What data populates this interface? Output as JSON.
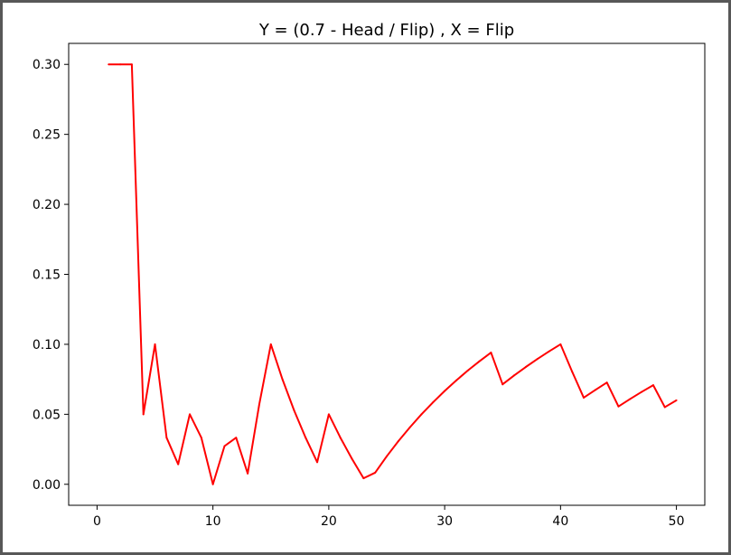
{
  "chart_data": {
    "type": "line",
    "title": "Y = (0.7 - Head / Flip) , X = Flip",
    "xlabel": "",
    "ylabel": "",
    "xlim": [
      -2.45,
      52.45
    ],
    "ylim": [
      -0.015,
      0.315
    ],
    "xticks": [
      0,
      10,
      20,
      30,
      40,
      50
    ],
    "yticks": [
      0.0,
      0.05,
      0.1,
      0.15,
      0.2,
      0.25,
      0.3
    ],
    "xtick_labels": [
      "0",
      "10",
      "20",
      "30",
      "40",
      "50"
    ],
    "ytick_labels": [
      "0.00",
      "0.05",
      "0.10",
      "0.15",
      "0.20",
      "0.25",
      "0.30"
    ],
    "grid": false,
    "series": [
      {
        "color": "#ff0000",
        "x": [
          1,
          2,
          3,
          4,
          5,
          6,
          7,
          8,
          9,
          10,
          11,
          12,
          13,
          14,
          15,
          16,
          17,
          18,
          19,
          20,
          21,
          22,
          23,
          24,
          25,
          26,
          27,
          28,
          29,
          30,
          31,
          32,
          33,
          34,
          35,
          36,
          37,
          38,
          39,
          40,
          41,
          42,
          43,
          44,
          45,
          46,
          47,
          48,
          49,
          50
        ],
        "y": [
          0.3,
          0.3,
          0.3,
          0.05,
          0.1,
          0.0333,
          0.0143,
          0.05,
          0.0333,
          0.0,
          0.0273,
          0.0333,
          0.0077,
          0.0571,
          0.1,
          0.075,
          0.0529,
          0.0333,
          0.0158,
          0.05,
          0.0333,
          0.0182,
          0.0043,
          0.0083,
          0.02,
          0.0308,
          0.0407,
          0.05,
          0.0586,
          0.0667,
          0.0742,
          0.0813,
          0.0879,
          0.0941,
          0.0714,
          0.0778,
          0.0838,
          0.0895,
          0.0949,
          0.1,
          0.0805,
          0.0619,
          0.0674,
          0.0727,
          0.0556,
          0.0609,
          0.066,
          0.0708,
          0.0551,
          0.06
        ]
      }
    ]
  }
}
